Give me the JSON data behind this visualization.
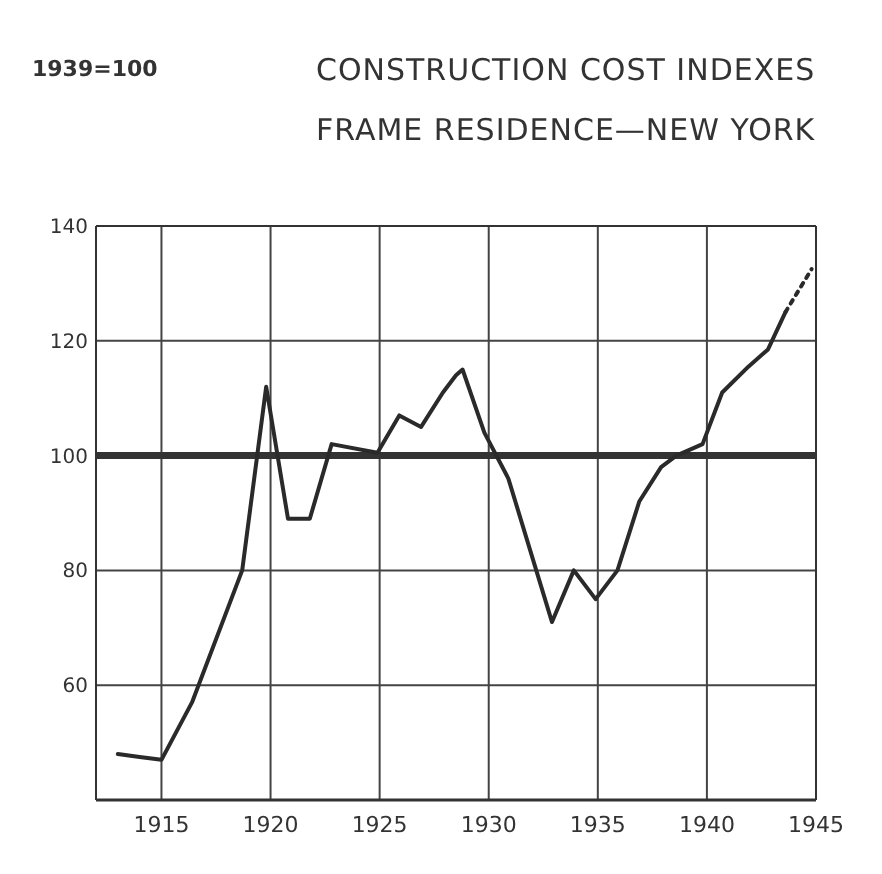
{
  "chart_data": {
    "type": "line",
    "title": "CONSTRUCTION COST INDEXES",
    "subtitle": "FRAME RESIDENCE—NEW YORK",
    "annotations": [
      "1939=100"
    ],
    "xlim": [
      1912,
      1945
    ],
    "xticks": [
      1915,
      1920,
      1925,
      1930,
      1935,
      1940,
      1945
    ],
    "ylim": [
      40,
      140
    ],
    "yticks": [
      60,
      80,
      100,
      120,
      140
    ],
    "grid": true,
    "line_style": "solid",
    "ref_lines": [
      {
        "axis": "y",
        "value": 100,
        "color": "#333333"
      }
    ],
    "series": [
      {
        "color": "#2a2a2a",
        "x": [
          1913.0,
          1914.0,
          1915.0,
          1916.4,
          1918.7,
          1919.8,
          1920.8,
          1921.8,
          1922.8,
          1924.9,
          1925.9,
          1926.9,
          1927.9,
          1928.5,
          1928.8,
          1929.8,
          1930.9,
          1932.9,
          1933.9,
          1934.9,
          1935.9,
          1936.9,
          1937.9,
          1938.6,
          1939.8,
          1940.7,
          1941.9,
          1942.8,
          1943.6
        ],
        "values": [
          48,
          47.5,
          47,
          57,
          80,
          112,
          89,
          89,
          102,
          100.5,
          107,
          105,
          111,
          114,
          115,
          104,
          96,
          71,
          80,
          75,
          80,
          92,
          98,
          100,
          102,
          111,
          115.5,
          118.5,
          125
        ]
      },
      {
        "color": "#2a2a2a",
        "line_style": "dotted",
        "x": [
          1943.6,
          1944.8
        ],
        "values": [
          125,
          132.5
        ]
      }
    ]
  }
}
